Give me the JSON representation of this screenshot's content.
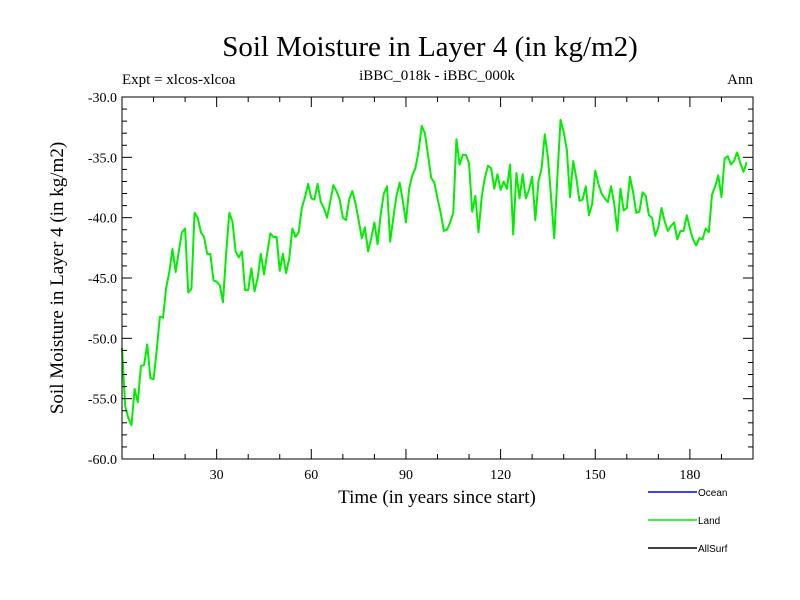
{
  "chart_data": {
    "type": "line",
    "title": "Soil Moisture in Layer 4 (in kg/m2)",
    "subtitle_left": "Expt = xlcos-xlcoa",
    "subtitle_center": "iBBC_018k - iBBC_000k",
    "subtitle_right": "Ann",
    "xlabel": "Time (in years since start)",
    "ylabel": "Soil Moisture in Layer 4 (in kg/m2)",
    "xlim": [
      0,
      200
    ],
    "ylim": [
      -60,
      -30
    ],
    "xticks": [
      30,
      60,
      90,
      120,
      150,
      180
    ],
    "xtick_labels": [
      "30",
      "60",
      "90",
      "120",
      "150",
      "180"
    ],
    "yticks": [
      -30,
      -35,
      -40,
      -45,
      -50,
      -55,
      -60
    ],
    "ytick_labels": [
      "-30.0",
      "-35.0",
      "-40.0",
      "-45.0",
      "-50.0",
      "-55.0",
      "-60.0"
    ],
    "legend": [
      {
        "label": "Ocean",
        "color": "#0000ff"
      },
      {
        "label": "Land",
        "color": "#00ee00"
      },
      {
        "label": "AllSurf",
        "color": "#000000"
      }
    ],
    "series": [
      {
        "name": "Land",
        "color": "#00ee00",
        "x_start": 0,
        "x_step": 1,
        "values": [
          -50.8,
          -55.6,
          -56.6,
          -57.2,
          -54.2,
          -55.3,
          -52.3,
          -52.2,
          -50.5,
          -53.3,
          -53.4,
          -51.0,
          -48.2,
          -48.3,
          -45.8,
          -44.5,
          -42.6,
          -44.5,
          -42.8,
          -41.2,
          -40.9,
          -46.2,
          -45.9,
          -39.6,
          -40.0,
          -41.2,
          -41.6,
          -43.0,
          -43.0,
          -45.2,
          -45.3,
          -45.6,
          -47.0,
          -43.0,
          -39.6,
          -40.3,
          -42.8,
          -43.3,
          -42.8,
          -46.0,
          -46.0,
          -44.2,
          -46.1,
          -45.0,
          -43.0,
          -44.7,
          -43.0,
          -41.3,
          -41.6,
          -41.6,
          -44.4,
          -43.0,
          -44.6,
          -43.4,
          -40.9,
          -41.6,
          -41.2,
          -39.2,
          -38.3,
          -37.2,
          -38.4,
          -38.5,
          -37.2,
          -38.7,
          -39.2,
          -40.0,
          -38.7,
          -37.3,
          -37.8,
          -38.5,
          -40.0,
          -40.2,
          -38.5,
          -37.8,
          -38.8,
          -40.2,
          -41.7,
          -40.8,
          -42.8,
          -41.7,
          -40.4,
          -42.2,
          -39.7,
          -38.0,
          -37.4,
          -42.0,
          -40.0,
          -38.2,
          -37.1,
          -38.6,
          -40.4,
          -37.6,
          -36.5,
          -35.9,
          -34.5,
          -32.4,
          -33.0,
          -34.8,
          -36.7,
          -37.1,
          -38.4,
          -39.6,
          -41.1,
          -41.0,
          -40.4,
          -39.6,
          -33.5,
          -35.6,
          -34.8,
          -34.8,
          -35.5,
          -39.5,
          -38.2,
          -41.2,
          -38.3,
          -36.7,
          -35.7,
          -35.9,
          -37.6,
          -36.4,
          -37.7,
          -37.0,
          -37.6,
          -35.6,
          -41.4,
          -36.3,
          -38.4,
          -36.4,
          -38.4,
          -37.7,
          -36.6,
          -40.2,
          -37.0,
          -35.9,
          -33.1,
          -35.0,
          -38.3,
          -41.7,
          -36.6,
          -31.9,
          -32.9,
          -34.4,
          -38.3,
          -35.3,
          -36.7,
          -38.6,
          -38.5,
          -37.4,
          -39.8,
          -38.9,
          -36.1,
          -37.2,
          -38.0,
          -38.4,
          -38.7,
          -37.4,
          -38.8,
          -41.1,
          -37.6,
          -39.4,
          -39.2,
          -36.6,
          -37.9,
          -39.6,
          -39.5,
          -37.9,
          -38.2,
          -39.8,
          -40.0,
          -41.5,
          -40.8,
          -39.2,
          -40.3,
          -41.1,
          -40.7,
          -40.4,
          -41.8,
          -41.1,
          -41.1,
          -39.8,
          -40.9,
          -41.8,
          -42.3,
          -41.7,
          -41.8,
          -40.9,
          -41.2,
          -38.1,
          -37.4,
          -36.5,
          -38.3,
          -35.1,
          -34.9,
          -35.6,
          -35.3,
          -34.6,
          -35.5,
          -36.2,
          -35.4
        ]
      }
    ]
  }
}
